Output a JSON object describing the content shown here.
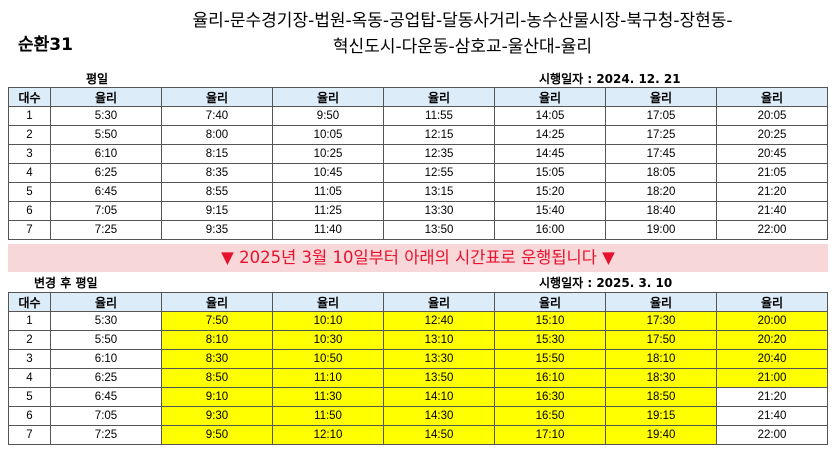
{
  "header": {
    "route_id": "순환31",
    "route_line1": "율리-문수경기장-법원-옥동-공업탑-달동사거리-농수산물시장-북구청-장현동-",
    "route_line2": "혁신도시-다운동-삼호교-울산대-율리"
  },
  "table1": {
    "label": "평일",
    "effective": "시행일자 : 2024. 12. 21",
    "columns": [
      "대수",
      "율리",
      "율리",
      "율리",
      "율리",
      "율리",
      "율리",
      "율리"
    ],
    "rows": [
      [
        "1",
        "5:30",
        "7:40",
        "9:50",
        "11:55",
        "14:05",
        "17:05",
        "20:05"
      ],
      [
        "2",
        "5:50",
        "8:00",
        "10:05",
        "12:15",
        "14:25",
        "17:25",
        "20:25"
      ],
      [
        "3",
        "6:10",
        "8:15",
        "10:25",
        "12:35",
        "14:45",
        "17:45",
        "20:45"
      ],
      [
        "4",
        "6:25",
        "8:35",
        "10:45",
        "12:55",
        "15:05",
        "18:05",
        "21:05"
      ],
      [
        "5",
        "6:45",
        "8:55",
        "11:05",
        "13:15",
        "15:20",
        "18:20",
        "21:20"
      ],
      [
        "6",
        "7:05",
        "9:15",
        "11:25",
        "13:30",
        "15:40",
        "18:40",
        "21:40"
      ],
      [
        "7",
        "7:25",
        "9:35",
        "11:40",
        "13:50",
        "16:00",
        "19:00",
        "22:00"
      ]
    ]
  },
  "notice": {
    "left_icon": "down-triangle-icon",
    "right_icon": "down-triangle-icon",
    "text": "2025년 3월 10일부터 아래의 시간표로 운행됩니다",
    "color": "#e8112d",
    "background": "#f8d7d9"
  },
  "table2": {
    "label": "변경 후 평일",
    "effective": "시행일자 : 2025. 3. 10",
    "highlight_color": "#ffff00",
    "columns": [
      "대수",
      "율리",
      "율리",
      "율리",
      "율리",
      "율리",
      "율리",
      "율리"
    ],
    "rows": [
      [
        "1",
        "5:30",
        "7:50",
        "10:10",
        "12:40",
        "15:10",
        "17:30",
        "20:00"
      ],
      [
        "2",
        "5:50",
        "8:10",
        "10:30",
        "13:10",
        "15:30",
        "17:50",
        "20:20"
      ],
      [
        "3",
        "6:10",
        "8:30",
        "10:50",
        "13:30",
        "15:50",
        "18:10",
        "20:40"
      ],
      [
        "4",
        "6:25",
        "8:50",
        "11:10",
        "13:50",
        "16:10",
        "18:30",
        "21:00"
      ],
      [
        "5",
        "6:45",
        "9:10",
        "11:30",
        "14:10",
        "16:30",
        "18:50",
        "21:20"
      ],
      [
        "6",
        "7:05",
        "9:30",
        "11:50",
        "14:30",
        "16:50",
        "19:15",
        "21:40"
      ],
      [
        "7",
        "7:25",
        "9:50",
        "12:10",
        "14:50",
        "17:10",
        "19:40",
        "22:00"
      ]
    ],
    "highlighted": [
      [
        false,
        false,
        true,
        true,
        true,
        true,
        true,
        true
      ],
      [
        false,
        false,
        true,
        true,
        true,
        true,
        true,
        true
      ],
      [
        false,
        false,
        true,
        true,
        true,
        true,
        true,
        true
      ],
      [
        false,
        false,
        true,
        true,
        true,
        true,
        true,
        true
      ],
      [
        false,
        false,
        true,
        true,
        true,
        true,
        true,
        false
      ],
      [
        false,
        false,
        true,
        true,
        true,
        true,
        true,
        false
      ],
      [
        false,
        false,
        true,
        true,
        true,
        true,
        true,
        false
      ]
    ]
  }
}
